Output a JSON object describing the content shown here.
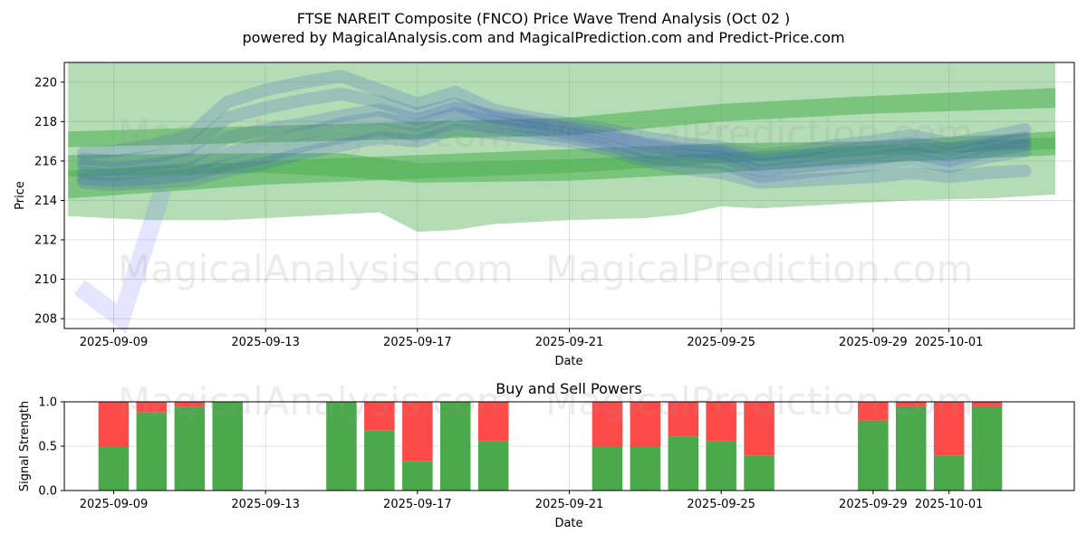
{
  "title_line1": "FTSE NAREIT Composite (FNCO) Price Wave Trend Analysis (Oct 02 )",
  "title_line2": "powered by MagicalAnalysis.com and MagicalPrediction.com and Predict-Price.com",
  "watermarks": [
    "MagicalAnalysis.com",
    "MagicalPrediction.com"
  ],
  "chart_data": [
    {
      "type": "area",
      "title": "FTSE NAREIT Composite (FNCO) Price Wave Trend Analysis (Oct 02 )",
      "xlabel": "Date",
      "ylabel": "Price",
      "ylim": [
        207.5,
        221
      ],
      "xlim": [
        -1.3,
        25.3
      ],
      "x_ticks": [
        {
          "day": 0,
          "label": "2025-09-09"
        },
        {
          "day": 4,
          "label": "2025-09-13"
        },
        {
          "day": 8,
          "label": "2025-09-17"
        },
        {
          "day": 12,
          "label": "2025-09-21"
        },
        {
          "day": 16,
          "label": "2025-09-25"
        },
        {
          "day": 20,
          "label": "2025-09-29"
        },
        {
          "day": 22,
          "label": "2025-10-01"
        }
      ],
      "y_ticks": [
        208,
        210,
        212,
        214,
        216,
        218,
        220
      ],
      "grid": true,
      "green_bands": [
        {
          "name": "outer-band",
          "x": [
            -1.2,
            1,
            3,
            5,
            7,
            8,
            9,
            10,
            12,
            14,
            15,
            16,
            17,
            19,
            21,
            23,
            24.8
          ],
          "upper": [
            221.0,
            221.0,
            221.0,
            221.0,
            221.0,
            221.0,
            221.0,
            221.0,
            221.0,
            221.0,
            221.0,
            221.0,
            221.0,
            221.0,
            221.0,
            221.0,
            221.0
          ],
          "lower": [
            213.2,
            213.0,
            213.0,
            213.2,
            213.4,
            212.4,
            212.5,
            212.8,
            213.0,
            213.1,
            213.3,
            213.7,
            213.6,
            213.8,
            214.0,
            214.1,
            214.3
          ]
        },
        {
          "name": "upper-trend",
          "x": [
            -1.2,
            12,
            16,
            20,
            24.8
          ],
          "upper": [
            217.5,
            218.2,
            218.9,
            219.3,
            219.7
          ],
          "lower": [
            216.7,
            217.3,
            218.0,
            218.4,
            218.7
          ]
        },
        {
          "name": "lower-trend",
          "x": [
            -1.2,
            4,
            8,
            12,
            16,
            20,
            24.8
          ],
          "upper": [
            215.5,
            216.0,
            216.3,
            216.6,
            216.9,
            217.0,
            217.5
          ],
          "lower": [
            214.1,
            214.8,
            215.1,
            215.4,
            215.9,
            216.3,
            216.6
          ]
        },
        {
          "name": "mid-trend",
          "x": [
            -1.2,
            4,
            6,
            8,
            12,
            16,
            20,
            24.8
          ],
          "upper": [
            216.3,
            216.4,
            216.4,
            215.9,
            216.1,
            216.4,
            216.8,
            217.2
          ],
          "lower": [
            215.2,
            215.4,
            215.2,
            214.9,
            215.0,
            215.4,
            215.9,
            216.3
          ]
        }
      ],
      "blue_waves": [
        {
          "x": [
            -0.8,
            0,
            1,
            2,
            3,
            4,
            5,
            6,
            7,
            8,
            9,
            10,
            11,
            12,
            13,
            14,
            15,
            16,
            17,
            18,
            19,
            20,
            21,
            22,
            23,
            24
          ],
          "y": [
            215.8,
            215.6,
            215.8,
            216.1,
            217.2,
            217.6,
            217.9,
            218.3,
            218.6,
            218.1,
            218.7,
            218.3,
            218.0,
            217.7,
            217.4,
            216.8,
            216.5,
            216.4,
            215.8,
            216.0,
            216.2,
            216.4,
            216.7,
            216.3,
            216.8,
            217.2
          ]
        },
        {
          "x": [
            -0.8,
            0,
            1,
            2,
            3,
            4,
            5,
            6,
            7,
            8,
            9,
            10,
            11,
            12,
            13,
            14,
            15,
            16,
            17,
            18,
            19,
            20,
            21,
            22,
            23,
            24
          ],
          "y": [
            216.1,
            216.0,
            216.2,
            216.6,
            218.2,
            218.7,
            219.1,
            219.4,
            219.0,
            218.4,
            218.9,
            218.2,
            217.9,
            217.6,
            217.2,
            216.9,
            216.6,
            216.5,
            216.0,
            216.2,
            216.5,
            216.7,
            216.9,
            216.6,
            216.9,
            217.0
          ]
        },
        {
          "x": [
            -0.8,
            0,
            1,
            2,
            3,
            4,
            5,
            6,
            7,
            8,
            9,
            10,
            11,
            12,
            13,
            14,
            15,
            16,
            17,
            18,
            19,
            20,
            21,
            22,
            23,
            24
          ],
          "y": [
            215.4,
            215.3,
            215.5,
            215.6,
            216.4,
            216.9,
            217.4,
            217.9,
            218.2,
            217.8,
            218.4,
            218.0,
            217.7,
            217.4,
            217.0,
            216.5,
            216.3,
            216.2,
            215.5,
            215.7,
            215.9,
            216.1,
            216.4,
            216.0,
            216.5,
            216.8
          ]
        },
        {
          "x": [
            -0.8,
            0,
            1,
            2,
            3,
            4,
            5,
            6,
            7,
            8,
            9,
            10,
            11,
            12,
            13,
            14,
            15,
            16,
            17,
            18,
            19,
            20,
            21,
            22,
            23,
            24
          ],
          "y": [
            216.4,
            216.5,
            216.8,
            217.3,
            219.0,
            219.6,
            220.0,
            220.3,
            219.6,
            218.9,
            219.5,
            218.6,
            218.2,
            217.9,
            217.6,
            217.2,
            216.9,
            216.7,
            216.3,
            216.5,
            216.8,
            217.0,
            217.3,
            216.9,
            217.2,
            217.6
          ]
        },
        {
          "x": [
            -0.8,
            0,
            1,
            2,
            3,
            4,
            5,
            6,
            7,
            8,
            9,
            10,
            11,
            12,
            13,
            14,
            15,
            16,
            17,
            18,
            19,
            20,
            21,
            22,
            23,
            24
          ],
          "y": [
            215.1,
            215.0,
            215.1,
            215.3,
            215.8,
            216.2,
            216.8,
            217.2,
            217.6,
            217.3,
            218.0,
            217.7,
            217.5,
            217.2,
            216.8,
            216.2,
            216.0,
            215.9,
            215.2,
            215.4,
            215.6,
            215.8,
            216.1,
            215.7,
            216.2,
            216.5
          ]
        },
        {
          "x": [
            -0.8,
            0,
            1,
            2,
            3,
            4,
            5,
            6,
            7,
            8,
            9,
            10,
            11,
            12,
            13,
            14,
            15,
            16,
            17,
            18,
            19,
            20,
            21,
            22,
            23,
            24
          ],
          "y": [
            214.9,
            214.8,
            214.9,
            215.0,
            215.5,
            215.9,
            216.4,
            216.8,
            217.2,
            217.0,
            217.6,
            217.4,
            217.2,
            217.0,
            216.6,
            216.0,
            215.6,
            215.4,
            214.9,
            215.0,
            215.1,
            215.2,
            215.4,
            215.2,
            215.4,
            215.5
          ]
        }
      ],
      "check_mark": {
        "points": [
          [
            -0.9,
            209.6
          ],
          [
            0.2,
            208.0
          ],
          [
            1.3,
            214.6
          ]
        ],
        "color": "#6f6fff"
      }
    },
    {
      "type": "bar",
      "title": "Buy and Sell Powers",
      "xlabel": "Date",
      "ylabel": "Signal Strength",
      "ylim": [
        0,
        1
      ],
      "xlim": [
        -1.3,
        25.3
      ],
      "y_ticks": [
        0.0,
        0.5,
        1.0
      ],
      "x_ticks": [
        {
          "day": 0,
          "label": "2025-09-09"
        },
        {
          "day": 4,
          "label": "2025-09-13"
        },
        {
          "day": 8,
          "label": "2025-09-17"
        },
        {
          "day": 12,
          "label": "2025-09-21"
        },
        {
          "day": 16,
          "label": "2025-09-25"
        },
        {
          "day": 20,
          "label": "2025-09-29"
        },
        {
          "day": 22,
          "label": "2025-10-01"
        }
      ],
      "days": [
        0,
        1,
        2,
        3,
        6,
        7,
        8,
        9,
        10,
        13,
        14,
        15,
        16,
        17,
        20,
        21,
        22,
        23
      ],
      "buy": [
        0.5,
        0.88,
        0.94,
        1.0,
        1.0,
        0.68,
        0.33,
        1.0,
        0.56,
        0.5,
        0.5,
        0.61,
        0.56,
        0.39,
        0.79,
        0.95,
        0.39,
        0.95
      ],
      "sell": [
        0.5,
        0.12,
        0.06,
        0.0,
        0.0,
        0.32,
        0.67,
        0.0,
        0.44,
        0.5,
        0.5,
        0.39,
        0.44,
        0.61,
        0.21,
        0.05,
        0.61,
        0.05
      ],
      "buy_color": "#4ba84b",
      "sell_color": "#ff4a4a"
    }
  ]
}
